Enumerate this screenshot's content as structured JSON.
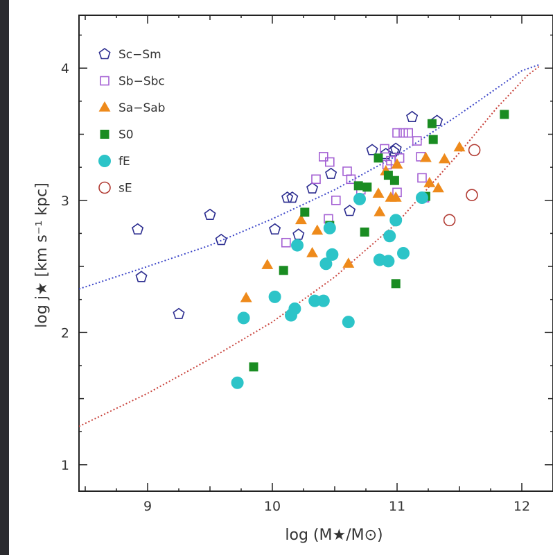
{
  "chart_data": {
    "type": "scatter",
    "xlabel": "log (M★/M⊙)",
    "ylabel": "log j★ [km s⁻¹ kpc]",
    "xlim": [
      8.45,
      12.25
    ],
    "ylim": [
      0.8,
      4.4
    ],
    "x_ticks": [
      9,
      10,
      11,
      12
    ],
    "x_tick_labels": [
      "9",
      "10",
      "11",
      "12"
    ],
    "y_ticks": [
      1,
      2,
      3,
      4
    ],
    "y_tick_labels": [
      "1",
      "2",
      "3",
      "4"
    ],
    "grid": false,
    "legend_position": "top-left",
    "series": [
      {
        "name": "Sc−Sm",
        "marker": "pentagon-open",
        "color": "#2b2c8f",
        "points": [
          [
            8.92,
            2.78
          ],
          [
            8.95,
            2.42
          ],
          [
            9.25,
            2.14
          ],
          [
            9.5,
            2.89
          ],
          [
            9.59,
            2.7
          ],
          [
            10.02,
            2.78
          ],
          [
            10.12,
            3.02
          ],
          [
            10.16,
            3.02
          ],
          [
            10.21,
            2.74
          ],
          [
            10.32,
            3.09
          ],
          [
            10.47,
            3.2
          ],
          [
            10.62,
            2.92
          ],
          [
            10.8,
            3.38
          ],
          [
            10.91,
            3.35
          ],
          [
            10.97,
            3.37
          ],
          [
            10.99,
            3.39
          ],
          [
            11.12,
            3.63
          ],
          [
            11.32,
            3.6
          ]
        ]
      },
      {
        "name": "Sb−Sbc",
        "marker": "square-open",
        "color": "#a35fd3",
        "points": [
          [
            10.11,
            2.68
          ],
          [
            10.35,
            3.16
          ],
          [
            10.41,
            3.33
          ],
          [
            10.45,
            2.86
          ],
          [
            10.46,
            3.29
          ],
          [
            10.51,
            3.0
          ],
          [
            10.6,
            3.22
          ],
          [
            10.63,
            3.16
          ],
          [
            10.71,
            3.08
          ],
          [
            10.9,
            3.39
          ],
          [
            10.92,
            3.27
          ],
          [
            10.95,
            3.3
          ],
          [
            11.0,
            3.51
          ],
          [
            11.0,
            3.06
          ],
          [
            11.02,
            3.32
          ],
          [
            11.05,
            3.51
          ],
          [
            11.09,
            3.51
          ],
          [
            11.16,
            3.45
          ],
          [
            11.19,
            3.33
          ],
          [
            11.2,
            3.17
          ],
          [
            11.22,
            3.02
          ]
        ]
      },
      {
        "name": "Sa−Sab",
        "marker": "triangle",
        "color": "#ee8a1b",
        "points": [
          [
            9.79,
            2.26
          ],
          [
            9.96,
            2.51
          ],
          [
            10.23,
            2.85
          ],
          [
            10.32,
            2.6
          ],
          [
            10.36,
            2.77
          ],
          [
            10.61,
            2.52
          ],
          [
            10.85,
            3.05
          ],
          [
            10.86,
            2.91
          ],
          [
            10.91,
            3.22
          ],
          [
            10.95,
            3.02
          ],
          [
            10.99,
            3.02
          ],
          [
            11.0,
            3.27
          ],
          [
            11.23,
            3.32
          ],
          [
            11.26,
            3.13
          ],
          [
            11.33,
            3.09
          ],
          [
            11.38,
            3.31
          ],
          [
            11.5,
            3.4
          ]
        ]
      },
      {
        "name": "S0",
        "marker": "square",
        "color": "#1a8c22",
        "points": [
          [
            9.85,
            1.74
          ],
          [
            10.09,
            2.47
          ],
          [
            10.26,
            2.91
          ],
          [
            10.46,
            2.81
          ],
          [
            10.69,
            3.11
          ],
          [
            10.74,
            2.76
          ],
          [
            10.76,
            3.1
          ],
          [
            10.85,
            3.32
          ],
          [
            10.93,
            3.19
          ],
          [
            10.98,
            3.15
          ],
          [
            10.99,
            2.37
          ],
          [
            11.23,
            3.03
          ],
          [
            11.28,
            3.58
          ],
          [
            11.29,
            3.46
          ],
          [
            11.86,
            3.65
          ]
        ]
      },
      {
        "name": "fE",
        "marker": "circle",
        "color": "#2cc4c8",
        "points": [
          [
            9.72,
            1.62
          ],
          [
            9.77,
            2.11
          ],
          [
            10.02,
            2.27
          ],
          [
            10.15,
            2.13
          ],
          [
            10.18,
            2.18
          ],
          [
            10.2,
            2.66
          ],
          [
            10.34,
            2.24
          ],
          [
            10.41,
            2.24
          ],
          [
            10.43,
            2.52
          ],
          [
            10.46,
            2.79
          ],
          [
            10.48,
            2.59
          ],
          [
            10.61,
            2.08
          ],
          [
            10.7,
            3.01
          ],
          [
            10.86,
            2.55
          ],
          [
            10.93,
            2.54
          ],
          [
            10.94,
            2.73
          ],
          [
            10.99,
            2.85
          ],
          [
            11.05,
            2.6
          ],
          [
            11.2,
            3.02
          ]
        ]
      },
      {
        "name": "sE",
        "marker": "circle-open",
        "color": "#b13a32",
        "points": [
          [
            11.42,
            2.85
          ],
          [
            11.6,
            3.04
          ],
          [
            11.62,
            3.38
          ]
        ]
      }
    ],
    "lines": [
      {
        "style": "dotted",
        "color": "#3b45c8",
        "points": [
          [
            8.45,
            2.33
          ],
          [
            9.0,
            2.5
          ],
          [
            9.5,
            2.66
          ],
          [
            10.0,
            2.86
          ],
          [
            10.5,
            3.08
          ],
          [
            11.0,
            3.34
          ],
          [
            11.5,
            3.65
          ],
          [
            12.0,
            3.98
          ],
          [
            12.15,
            4.03
          ]
        ]
      },
      {
        "style": "dotted",
        "color": "#c8413a",
        "points": [
          [
            8.45,
            1.29
          ],
          [
            9.0,
            1.54
          ],
          [
            9.5,
            1.8
          ],
          [
            10.0,
            2.08
          ],
          [
            10.5,
            2.42
          ],
          [
            11.0,
            2.83
          ],
          [
            11.5,
            3.36
          ],
          [
            11.8,
            3.7
          ],
          [
            12.05,
            3.95
          ],
          [
            12.15,
            4.02
          ]
        ]
      }
    ]
  }
}
